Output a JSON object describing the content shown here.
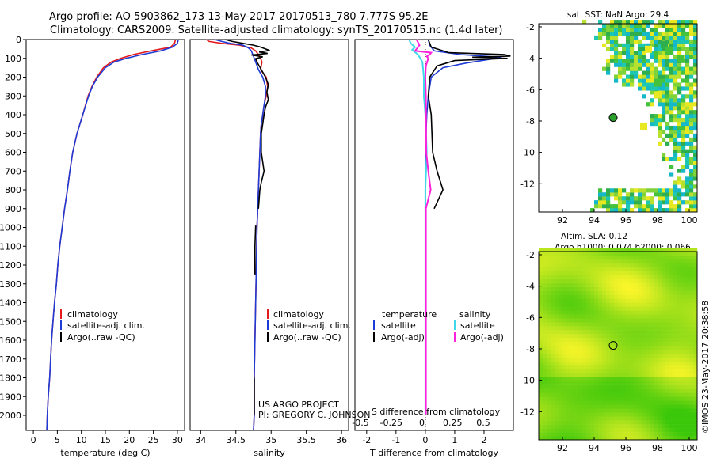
{
  "header": {
    "line1": "Argo profile: AO 5903862_173 13-May-2017 20170513_780 7.777S 95.2E",
    "line2": "Climatology: CARS2009. Satellite-adjusted climatology: synTS_20170515.nc (1.4d later)"
  },
  "colors": {
    "clim": "#e41a1c",
    "sat": "#1f3bd6",
    "argo": "#000000",
    "sal_sat": "#3fd8e8",
    "sal_argo": "#ff22dd"
  },
  "depth_axis": {
    "ticks": [
      0,
      100,
      200,
      300,
      400,
      500,
      600,
      700,
      800,
      900,
      1000,
      1100,
      1200,
      1300,
      1400,
      1500,
      1600,
      1700,
      1800,
      1900,
      2000
    ],
    "ylim": [
      0,
      2080
    ]
  },
  "temperature_panel": {
    "xlabel": "temperature (deg C)",
    "xlim": [
      -1.5,
      31.5
    ],
    "xticks": [
      0,
      5,
      10,
      15,
      20,
      25,
      30
    ],
    "legend": [
      "climatology",
      "satellite-adj. clim.",
      "Argo(..raw -QC)"
    ],
    "series": [
      {
        "name": "climatology",
        "color_key": "clim",
        "points": [
          [
            29.6,
            0
          ],
          [
            29.4,
            20
          ],
          [
            28.6,
            40
          ],
          [
            24.5,
            60
          ],
          [
            20.8,
            80
          ],
          [
            18.2,
            100
          ],
          [
            16.2,
            120
          ],
          [
            14.6,
            150
          ],
          [
            13.2,
            200
          ],
          [
            12.2,
            250
          ],
          [
            11.4,
            300
          ],
          [
            10.3,
            400
          ],
          [
            9.1,
            500
          ],
          [
            8.2,
            600
          ],
          [
            7.6,
            700
          ],
          [
            7.1,
            800
          ],
          [
            6.5,
            900
          ],
          [
            6.0,
            1000
          ],
          [
            5.5,
            1100
          ],
          [
            5.1,
            1200
          ],
          [
            4.8,
            1300
          ],
          [
            4.4,
            1400
          ],
          [
            4.1,
            1500
          ],
          [
            3.8,
            1600
          ],
          [
            3.6,
            1700
          ],
          [
            3.4,
            1800
          ],
          [
            3.1,
            1900
          ],
          [
            2.9,
            2000
          ],
          [
            2.8,
            2080
          ]
        ]
      },
      {
        "name": "satellite-adj. clim.",
        "color_key": "sat",
        "points": [
          [
            30.2,
            0
          ],
          [
            30.0,
            20
          ],
          [
            29.0,
            40
          ],
          [
            26.5,
            60
          ],
          [
            22.6,
            80
          ],
          [
            19.3,
            100
          ],
          [
            16.8,
            120
          ],
          [
            15.0,
            150
          ],
          [
            13.4,
            200
          ],
          [
            12.3,
            250
          ],
          [
            11.5,
            300
          ],
          [
            10.3,
            400
          ],
          [
            9.1,
            500
          ],
          [
            8.2,
            600
          ],
          [
            7.6,
            700
          ],
          [
            7.1,
            800
          ],
          [
            6.5,
            900
          ],
          [
            6.0,
            1000
          ],
          [
            5.5,
            1100
          ],
          [
            5.1,
            1200
          ],
          [
            4.8,
            1300
          ],
          [
            4.4,
            1400
          ],
          [
            4.1,
            1500
          ],
          [
            3.8,
            1600
          ],
          [
            3.6,
            1700
          ],
          [
            3.4,
            1800
          ],
          [
            3.1,
            1900
          ],
          [
            2.9,
            2000
          ],
          [
            2.8,
            2080
          ]
        ]
      }
    ]
  },
  "salinity_panel": {
    "xlabel": "salinity",
    "xlim": [
      33.85,
      36.1
    ],
    "xticks": [
      34,
      34.5,
      35,
      35.5,
      36
    ],
    "xticklabels": [
      "34",
      "34.5",
      "35",
      "35.5",
      "36"
    ],
    "legend": [
      "climatology",
      "satellite-adj. clim.",
      "Argo(..raw -QC)"
    ],
    "series": [
      {
        "name": "climatology",
        "color_key": "clim",
        "points": [
          [
            34.08,
            0
          ],
          [
            34.12,
            10
          ],
          [
            34.3,
            20
          ],
          [
            34.55,
            30
          ],
          [
            34.72,
            45
          ],
          [
            34.78,
            60
          ],
          [
            34.84,
            90
          ],
          [
            34.87,
            120
          ],
          [
            34.85,
            160
          ],
          [
            34.93,
            200
          ],
          [
            34.95,
            250
          ],
          [
            34.93,
            300
          ],
          [
            34.9,
            350
          ],
          [
            34.88,
            400
          ],
          [
            34.86,
            450
          ],
          [
            34.85,
            500
          ],
          [
            34.84,
            600
          ],
          [
            34.83,
            700
          ],
          [
            34.82,
            800
          ],
          [
            34.81,
            900
          ],
          [
            34.8,
            1000
          ],
          [
            34.79,
            1200
          ],
          [
            34.78,
            1400
          ],
          [
            34.77,
            1600
          ],
          [
            34.76,
            1800
          ],
          [
            34.76,
            2000
          ],
          [
            34.75,
            2080
          ]
        ]
      },
      {
        "name": "satellite-adj. clim.",
        "color_key": "sat",
        "points": [
          [
            34.2,
            0
          ],
          [
            34.3,
            10
          ],
          [
            34.42,
            20
          ],
          [
            34.6,
            30
          ],
          [
            34.68,
            45
          ],
          [
            34.72,
            60
          ],
          [
            34.75,
            90
          ],
          [
            34.78,
            120
          ],
          [
            34.82,
            160
          ],
          [
            34.88,
            200
          ],
          [
            34.92,
            250
          ],
          [
            34.92,
            300
          ],
          [
            34.9,
            350
          ],
          [
            34.88,
            400
          ],
          [
            34.86,
            450
          ],
          [
            34.85,
            500
          ],
          [
            34.84,
            600
          ],
          [
            34.83,
            700
          ],
          [
            34.82,
            800
          ],
          [
            34.81,
            900
          ],
          [
            34.8,
            1000
          ],
          [
            34.79,
            1200
          ],
          [
            34.78,
            1400
          ],
          [
            34.77,
            1600
          ],
          [
            34.76,
            1800
          ],
          [
            34.76,
            2000
          ],
          [
            34.75,
            2080
          ]
        ]
      },
      {
        "name": "Argo",
        "color_key": "argo",
        "points": [
          [
            34.35,
            0
          ],
          [
            34.45,
            10
          ],
          [
            34.6,
            20
          ],
          [
            34.75,
            30
          ],
          [
            34.85,
            40
          ],
          [
            34.92,
            50
          ],
          [
            34.98,
            58
          ],
          [
            34.83,
            66
          ],
          [
            34.95,
            74
          ],
          [
            34.72,
            82
          ],
          [
            34.88,
            92
          ],
          [
            34.78,
            102
          ],
          [
            34.8,
            120
          ],
          [
            34.86,
            160
          ],
          [
            34.92,
            200
          ],
          [
            34.96,
            240
          ],
          [
            34.94,
            280
          ],
          [
            34.96,
            320
          ],
          [
            34.92,
            360
          ],
          [
            34.9,
            400
          ],
          [
            34.88,
            450
          ],
          [
            34.86,
            500
          ],
          [
            34.86,
            600
          ],
          [
            34.9,
            700
          ],
          [
            34.86,
            760
          ],
          [
            34.84,
            800
          ],
          [
            34.82,
            900
          ]
        ]
      },
      {
        "name": "Argo-deep",
        "color_key": "argo",
        "points": [
          [
            34.78,
            990
          ],
          [
            34.77,
            1100
          ],
          [
            34.77,
            1200
          ],
          [
            34.77,
            1250
          ]
        ]
      },
      {
        "name": "Argo-deep2",
        "color_key": "argo",
        "points": [
          [
            34.76,
            1800
          ],
          [
            34.76,
            1900
          ],
          [
            34.76,
            2000
          ]
        ]
      }
    ]
  },
  "difference_panel": {
    "xlabel_bottom": "T difference from climatology",
    "xlabel_top": "S difference from climatology",
    "xlim": [
      -2.4,
      3.0
    ],
    "xticks": [
      -2,
      -1,
      0,
      1,
      2
    ],
    "xticklabels": [
      "-2",
      "-1",
      "0",
      "1",
      "2"
    ],
    "s_ticks": [
      -0.5,
      -0.25,
      0,
      0.25,
      0.5
    ],
    "s_ticklabels": [
      "-0.5",
      "-0.25",
      "0",
      "0.25",
      "0.5"
    ],
    "legend_temperature_title": "temperature",
    "legend_temperature": [
      "satellite",
      "Argo(-adj)"
    ],
    "legend_salinity_title": "salinity",
    "legend_salinity": [
      "satellite",
      "Argo(-adj)"
    ],
    "series": [
      {
        "name": "T satellite",
        "color_key": "sat",
        "points": [
          [
            0.1,
            0
          ],
          [
            0.15,
            30
          ],
          [
            0.3,
            60
          ],
          [
            1.2,
            80
          ],
          [
            2.6,
            95
          ],
          [
            2.2,
            105
          ],
          [
            1.4,
            125
          ],
          [
            0.6,
            150
          ],
          [
            0.2,
            200
          ],
          [
            0.1,
            300
          ],
          [
            0.05,
            400
          ],
          [
            0,
            600
          ],
          [
            0,
            1000
          ],
          [
            0,
            2000
          ]
        ]
      },
      {
        "name": "T Argo",
        "color_key": "argo",
        "points": [
          [
            0.1,
            0
          ],
          [
            0.2,
            40
          ],
          [
            0.8,
            70
          ],
          [
            2.7,
            80
          ],
          [
            2.9,
            88
          ],
          [
            1.6,
            94
          ],
          [
            2.8,
            100
          ],
          [
            1.0,
            112
          ],
          [
            0.4,
            140
          ],
          [
            0.15,
            200
          ],
          [
            0.1,
            300
          ],
          [
            0.2,
            400
          ],
          [
            0.25,
            600
          ],
          [
            0.4,
            700
          ],
          [
            0.6,
            800
          ],
          [
            0.3,
            900
          ]
        ]
      },
      {
        "name": "S satellite",
        "color_key": "sal_sat",
        "points": [
          [
            -0.55,
            0
          ],
          [
            -0.5,
            20
          ],
          [
            -0.35,
            40
          ],
          [
            -0.45,
            55
          ],
          [
            -0.25,
            80
          ],
          [
            -0.1,
            120
          ],
          [
            -0.05,
            200
          ],
          [
            -0.05,
            300
          ],
          [
            0,
            400
          ],
          [
            0.05,
            600
          ],
          [
            0,
            800
          ],
          [
            0,
            1000
          ],
          [
            0,
            1500
          ],
          [
            0,
            2000
          ]
        ]
      },
      {
        "name": "S Argo",
        "color_key": "sal_argo",
        "points": [
          [
            -0.3,
            0
          ],
          [
            -0.2,
            30
          ],
          [
            -0.35,
            60
          ],
          [
            0.2,
            70
          ],
          [
            0.15,
            80
          ],
          [
            0.05,
            90
          ],
          [
            0.1,
            100
          ],
          [
            0.02,
            140
          ],
          [
            0,
            200
          ],
          [
            0.02,
            300
          ],
          [
            0.03,
            600
          ],
          [
            0.1,
            700
          ],
          [
            0.18,
            800
          ],
          [
            0.02,
            900
          ],
          [
            0.02,
            1000
          ],
          [
            0.02,
            1500
          ],
          [
            0.02,
            2000
          ]
        ]
      }
    ]
  },
  "credits": {
    "line1": "US ARGO PROJECT",
    "line2": "PI: GREGORY C. JOHNSON"
  },
  "sst_map": {
    "title": "sat. SST: NaN  Argo: 29.4",
    "xlim": [
      90.5,
      100.5
    ],
    "ylim": [
      -13.8,
      -1.8
    ],
    "xticks": [
      92,
      94,
      96,
      98,
      100
    ],
    "yticks": [
      -2,
      -4,
      -6,
      -8,
      -10,
      -12
    ],
    "argo_position": [
      95.2,
      -7.78
    ]
  },
  "sla_map": {
    "title_line1": "Altim. SLA: 0.12",
    "title_line2": "Argo h1000: 0.074 h2000: 0.066",
    "xlim": [
      90.5,
      100.5
    ],
    "ylim": [
      -13.8,
      -1.8
    ],
    "xticks": [
      92,
      94,
      96,
      98,
      100
    ],
    "yticks": [
      -2,
      -4,
      -6,
      -8,
      -10,
      -12
    ],
    "argo_position": [
      95.2,
      -7.78
    ]
  },
  "timestamp": "©IMOS 23-May-2017 20:38:58"
}
